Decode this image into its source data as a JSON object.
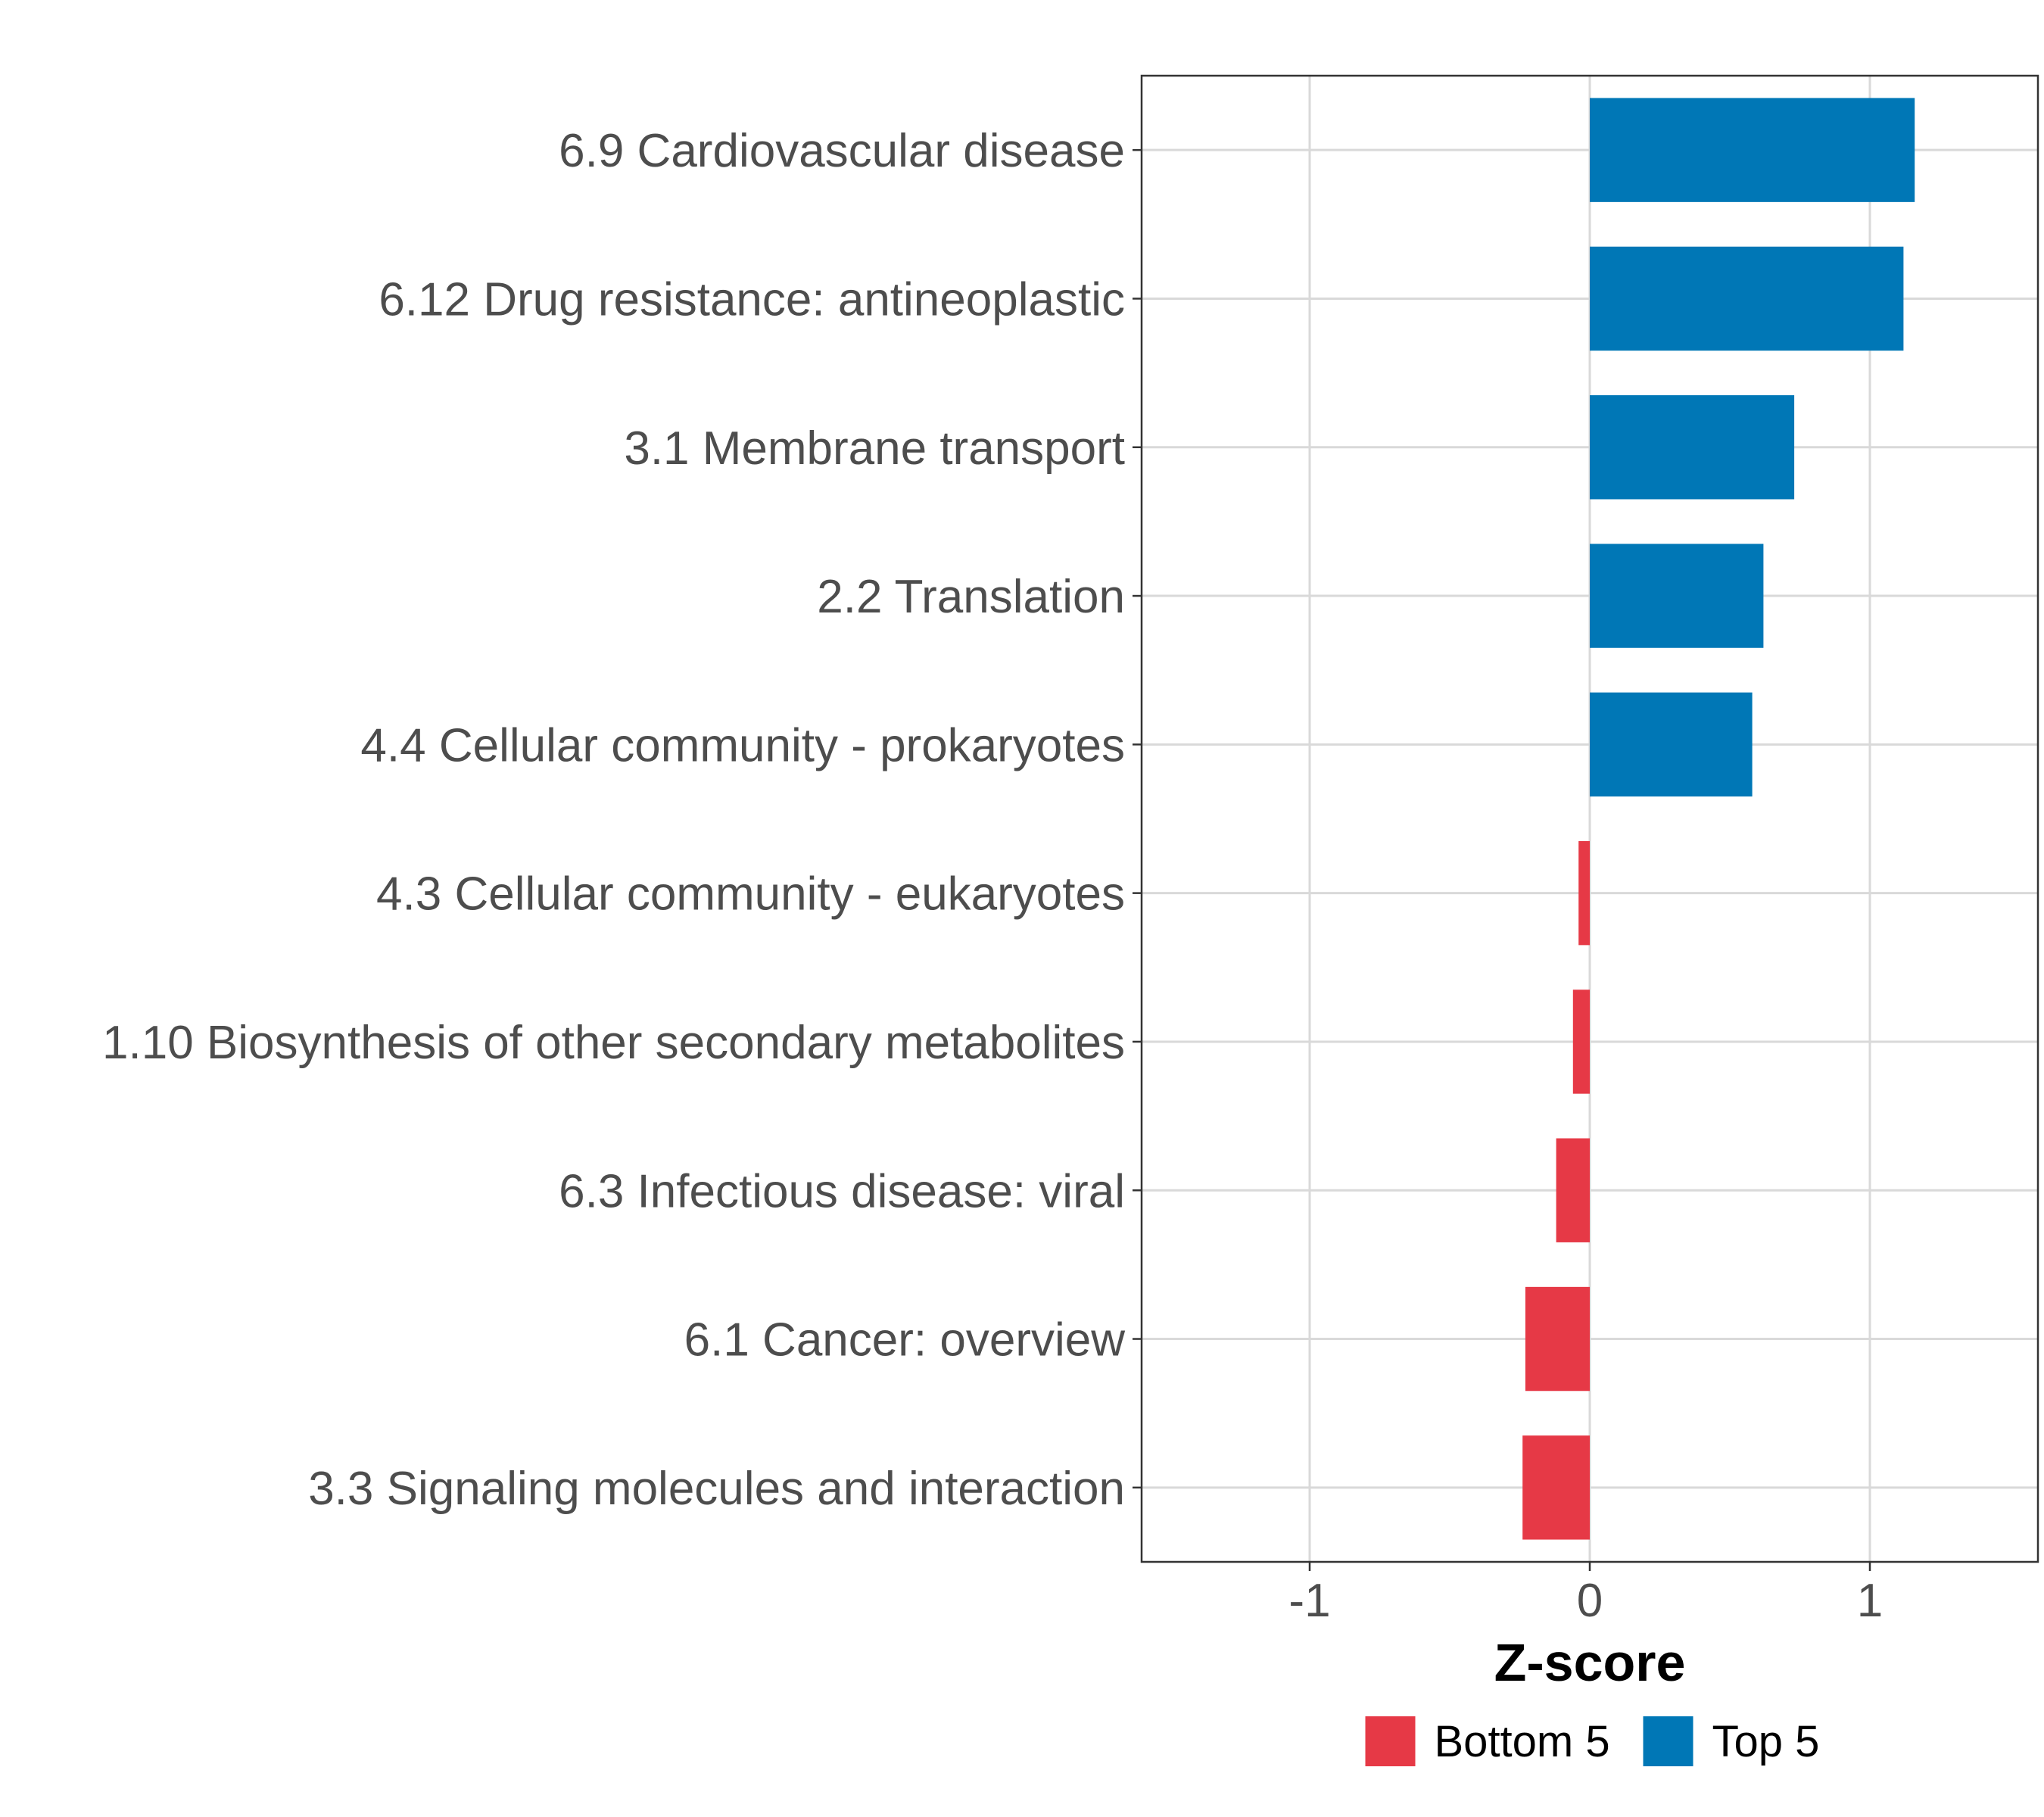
{
  "chart_data": {
    "type": "bar",
    "orientation": "horizontal",
    "title": "",
    "xlabel": "Z-score",
    "ylabel": "",
    "xlim": [
      -1.6,
      1.6
    ],
    "xticks": [
      -1,
      0,
      1
    ],
    "xtick_labels": [
      "-1",
      "0",
      "1"
    ],
    "grid": true,
    "categories": [
      "6.9 Cardiovascular disease",
      "6.12 Drug resistance: antineoplastic",
      "3.1 Membrane transport",
      "2.2 Translation",
      "4.4 Cellular community - prokaryotes",
      "4.3 Cellular community - eukaryotes",
      "1.10 Biosynthesis of other secondary metabolites",
      "6.3 Infectious disease: viral",
      "6.1 Cancer: overview",
      "3.3 Signaling molecules and interaction"
    ],
    "values": [
      1.16,
      1.12,
      0.73,
      0.62,
      0.58,
      -0.04,
      -0.06,
      -0.12,
      -0.23,
      -0.24
    ],
    "groups": [
      "Top 5",
      "Top 5",
      "Top 5",
      "Top 5",
      "Top 5",
      "Bottom 5",
      "Bottom 5",
      "Bottom 5",
      "Bottom 5",
      "Bottom 5"
    ],
    "legend": {
      "position": "bottom",
      "entries": [
        {
          "label": "Bottom 5",
          "color": "#E63946"
        },
        {
          "label": "Top 5",
          "color": "#0077B6"
        }
      ]
    },
    "colors": {
      "Bottom 5": "#E63946",
      "Top 5": "#0077B6"
    }
  }
}
